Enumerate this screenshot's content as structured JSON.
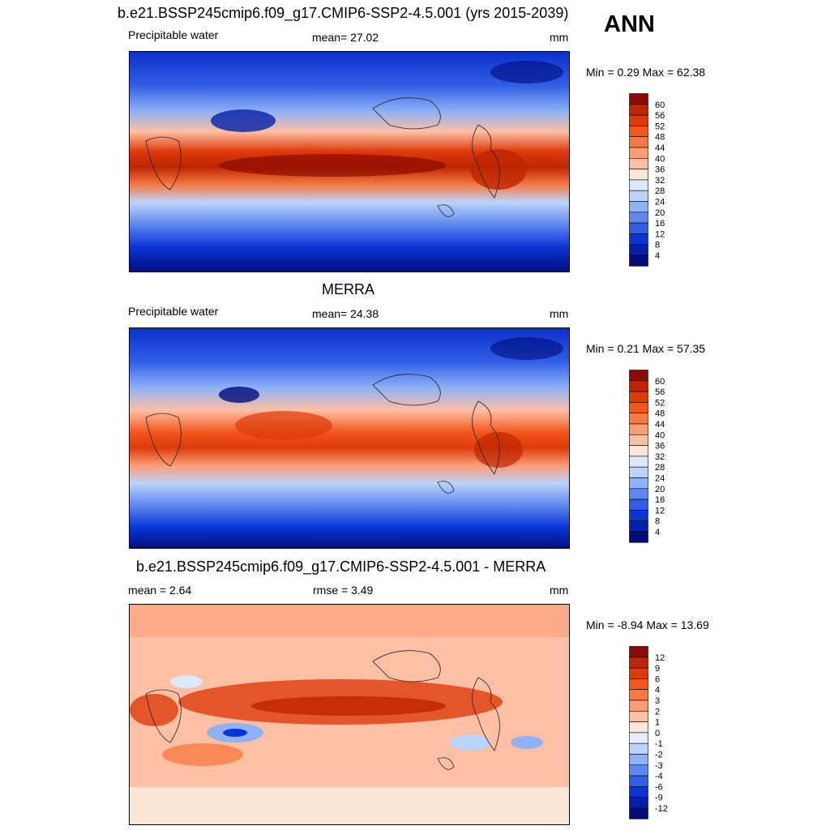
{
  "header": {
    "title": "b.e21.BSSP245cmip6.f09_g17.CMIP6-SSP2-4.5.001 (yrs 2015-2039)",
    "season": "ANN"
  },
  "panels": [
    {
      "id": "model",
      "title": "",
      "left_label": "Precipitable water",
      "center_label": "mean=  27.02",
      "units": "mm",
      "minmax": "Min =   0.29 Max =  62.38",
      "colorbar": {
        "labels": [
          "60",
          "56",
          "52",
          "48",
          "44",
          "40",
          "36",
          "32",
          "28",
          "24",
          "20",
          "16",
          "12",
          "8",
          "4"
        ],
        "colors": [
          "#8c0a00",
          "#bd2600",
          "#dd3a0a",
          "#f2571e",
          "#f77a44",
          "#fc9c74",
          "#fdc0a4",
          "#fde8d8",
          "#dbe8fd",
          "#bcd3fb",
          "#8fb2f6",
          "#5f88ee",
          "#2f5ee6",
          "#0a35d6",
          "#0520a8",
          "#000c7a"
        ],
        "colors_note": ""
      }
    },
    {
      "id": "obs",
      "title": "MERRA",
      "left_label": "Precipitable water",
      "center_label": "mean=  24.38",
      "units": "mm",
      "minmax": "Min =   0.21 Max =  57.35",
      "colorbar": {
        "labels": [
          "60",
          "56",
          "52",
          "48",
          "44",
          "40",
          "36",
          "32",
          "28",
          "24",
          "20",
          "16",
          "12",
          "8",
          "4"
        ],
        "colors": [
          "#8c0a00",
          "#bd2600",
          "#dd3a0a",
          "#f2571e",
          "#f77a44",
          "#fc9c74",
          "#fdc0a4",
          "#fde8d8",
          "#dbe8fd",
          "#bcd3fb",
          "#8fb2f6",
          "#5f88ee",
          "#2f5ee6",
          "#0a35d6",
          "#0520a8",
          "#000c7a"
        ]
      }
    },
    {
      "id": "diff",
      "title": "b.e21.BSSP245cmip6.f09_g17.CMIP6-SSP2-4.5.001 - MERRA",
      "left_label": "mean =   2.64",
      "center_label": "rmse =   3.49",
      "units": "mm",
      "minmax": "Min =  -8.94 Max =  13.69",
      "colorbar": {
        "labels": [
          "12",
          "9",
          "6",
          "4",
          "3",
          "2",
          "1",
          "0",
          "-1",
          "-2",
          "-3",
          "-4",
          "-6",
          "-9",
          "-12"
        ],
        "colors": [
          "#8c0a00",
          "#bd2600",
          "#dd3a0a",
          "#f2571e",
          "#f77a44",
          "#fc9c74",
          "#fdc0a4",
          "#fde8d8",
          "#e6eefd",
          "#bcd3fb",
          "#8fb2f6",
          "#5f88ee",
          "#2f5ee6",
          "#0a35d6",
          "#0520a8",
          "#000c7a"
        ]
      }
    }
  ]
}
